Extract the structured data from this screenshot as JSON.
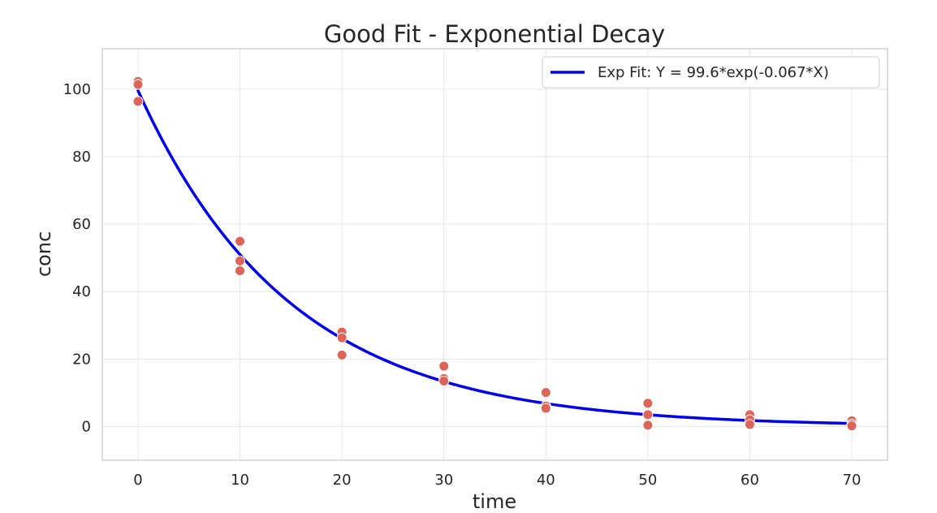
{
  "chart_data": {
    "type": "scatter",
    "title": "Good Fit - Exponential Decay",
    "xlabel": "time",
    "ylabel": "conc",
    "xlim": [
      -3.5,
      73.5
    ],
    "ylim": [
      -10,
      112
    ],
    "xticks": [
      0,
      10,
      20,
      30,
      40,
      50,
      60,
      70
    ],
    "yticks": [
      0,
      20,
      40,
      60,
      80,
      100
    ],
    "grid": true,
    "legend": "top-right",
    "series": [
      {
        "kind": "scatter",
        "color": "#dd6458",
        "points": [
          [
            0,
            102.3
          ],
          [
            0,
            101.4
          ],
          [
            0,
            96.4
          ],
          [
            10,
            54.9
          ],
          [
            10,
            49.1
          ],
          [
            10,
            46.2
          ],
          [
            20,
            28.0
          ],
          [
            20,
            26.3
          ],
          [
            20,
            21.2
          ],
          [
            30,
            17.9
          ],
          [
            30,
            14.2
          ],
          [
            30,
            13.5
          ],
          [
            40,
            10.1
          ],
          [
            40,
            6.1
          ],
          [
            40,
            5.4
          ],
          [
            50,
            6.9
          ],
          [
            50,
            3.5
          ],
          [
            50,
            0.4
          ],
          [
            60,
            3.5
          ],
          [
            60,
            2.0
          ],
          [
            60,
            0.6
          ],
          [
            70,
            1.7
          ],
          [
            70,
            0.7
          ],
          [
            70,
            0.2
          ]
        ]
      },
      {
        "kind": "line",
        "name": "Exp Fit: Y = 99.6*exp(-0.067*X)",
        "color": "#0000ee",
        "function": {
          "a": 99.6,
          "k": 0.067
        },
        "x_range": [
          0,
          70
        ]
      }
    ]
  }
}
